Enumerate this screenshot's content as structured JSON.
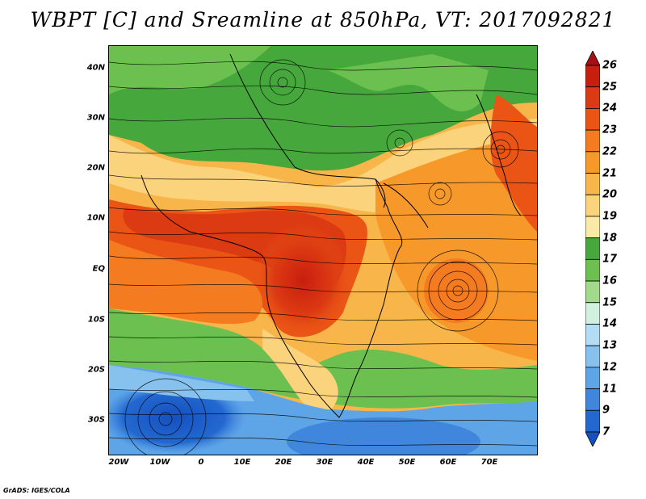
{
  "title": "WBPT [C] and Sreamline at 850hPa, VT: 2017092821",
  "credit": "GrADS: IGES/COLA",
  "map": {
    "variable": "wet-bulb potential temperature at 850hPa with streamlines",
    "lat_labels": [
      "40N",
      "30N",
      "20N",
      "10N",
      "EQ",
      "10S",
      "20S",
      "30S"
    ],
    "lon_labels": [
      "20W",
      "10W",
      "0",
      "10E",
      "20E",
      "30E",
      "40E",
      "50E",
      "60E",
      "70E"
    ]
  },
  "colorbar": {
    "levels": [
      "26",
      "25",
      "24",
      "23",
      "22",
      "21",
      "20",
      "19",
      "18",
      "17",
      "16",
      "15",
      "14",
      "13",
      "12",
      "11",
      "9",
      "7"
    ],
    "colors": [
      "#a50f15",
      "#c81e10",
      "#dc3a12",
      "#ea5516",
      "#f47b20",
      "#f7992a",
      "#f8b54a",
      "#fad37c",
      "#fbe9a8",
      "#46a83c",
      "#6cc04f",
      "#a3d98b",
      "#d2f0e0",
      "#b3dcf5",
      "#87c2ef",
      "#5ea5e8",
      "#3f86dc",
      "#2368d0",
      "#1550c0"
    ]
  }
}
